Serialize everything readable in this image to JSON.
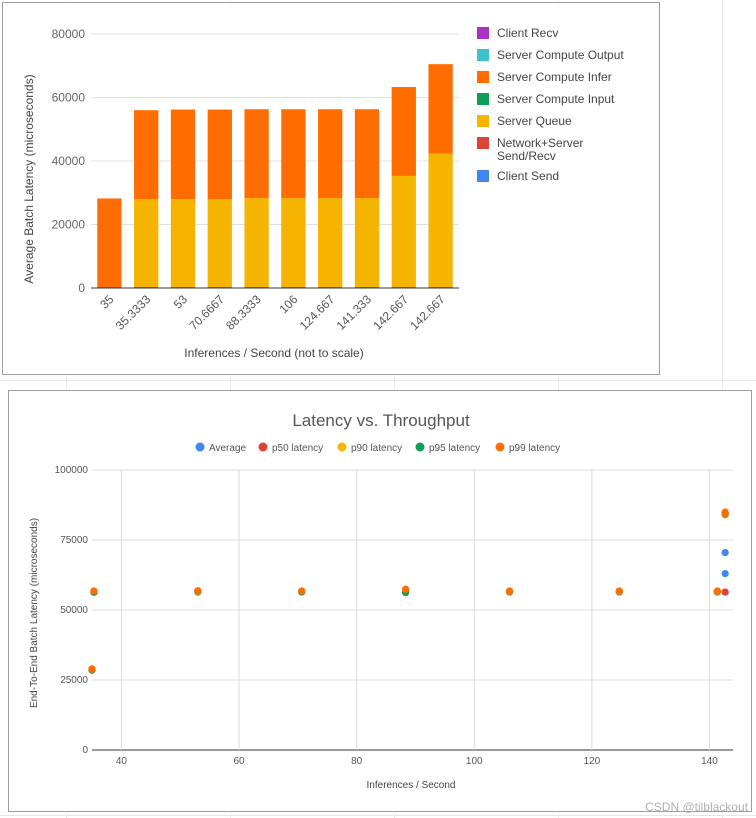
{
  "chart_data": [
    {
      "type": "bar",
      "stacked": true,
      "xlabel": "Inferences / Second (not to scale)",
      "ylabel": "Average Batch Latency (microseconds)",
      "ylim": [
        0,
        80000
      ],
      "yticks": [
        "0",
        "20000",
        "40000",
        "60000",
        "80000"
      ],
      "categories": [
        "35",
        "35.3333",
        "53",
        "70.6667",
        "88.3333",
        "106",
        "124.667",
        "141.333",
        "142.667",
        "142.667"
      ],
      "legend_position": "right",
      "legend": [
        {
          "name": "Client Recv",
          "color": "#ab30c4"
        },
        {
          "name": "Server Compute Output",
          "color": "#3ec1cf"
        },
        {
          "name": "Server Compute Infer",
          "color": "#ff6d01"
        },
        {
          "name": "Server Compute Input",
          "color": "#0f9d58"
        },
        {
          "name": "Server Queue",
          "color": "#f4b400"
        },
        {
          "name": "Network+Server\nSend/Recv",
          "color": "#db4437"
        },
        {
          "name": "Client Send",
          "color": "#4285f4"
        }
      ],
      "series": [
        {
          "name": "Client Send",
          "color": "#4285f4",
          "values": [
            0,
            0,
            0,
            0,
            0,
            0,
            0,
            0,
            0,
            0
          ]
        },
        {
          "name": "Network+Server Send/Recv",
          "color": "#db4437",
          "values": [
            300,
            300,
            300,
            300,
            300,
            300,
            300,
            300,
            300,
            300
          ]
        },
        {
          "name": "Server Queue",
          "color": "#f4b400",
          "values": [
            0,
            27700,
            27700,
            27700,
            28000,
            28000,
            28000,
            28000,
            35000,
            42000
          ]
        },
        {
          "name": "Server Compute Input",
          "color": "#0f9d58",
          "values": [
            0,
            0,
            0,
            0,
            0,
            0,
            0,
            0,
            0,
            0
          ]
        },
        {
          "name": "Server Compute Infer",
          "color": "#ff6d01",
          "values": [
            27900,
            28000,
            28200,
            28200,
            28000,
            28000,
            28000,
            28000,
            28000,
            28200
          ]
        },
        {
          "name": "Server Compute Output",
          "color": "#3ec1cf",
          "values": [
            0,
            0,
            0,
            0,
            0,
            0,
            0,
            0,
            0,
            0
          ]
        },
        {
          "name": "Client Recv",
          "color": "#ab30c4",
          "values": [
            0,
            0,
            0,
            0,
            0,
            0,
            0,
            0,
            0,
            0
          ]
        }
      ]
    },
    {
      "type": "scatter",
      "title": "Latency vs. Throughput",
      "xlabel": "Inferences / Second",
      "ylabel": "End-To-End Batch Latency (microseconds)",
      "xlim": [
        35,
        144
      ],
      "ylim": [
        0,
        100000
      ],
      "xticks": [
        "40",
        "60",
        "80",
        "100",
        "120",
        "140"
      ],
      "yticks": [
        "0",
        "25000",
        "50000",
        "75000",
        "100000"
      ],
      "grid": true,
      "legend_position": "top",
      "series": [
        {
          "name": "Average",
          "color": "#4285f4",
          "points": [
            [
              35,
              28500
            ],
            [
              35.3333,
              56300
            ],
            [
              53,
              56500
            ],
            [
              70.6667,
              56400
            ],
            [
              88.3333,
              56600
            ],
            [
              106,
              56500
            ],
            [
              124.667,
              56500
            ],
            [
              141.333,
              56500
            ],
            [
              142.667,
              63000
            ],
            [
              142.667,
              70500
            ]
          ]
        },
        {
          "name": "p50 latency",
          "color": "#db4437",
          "points": [
            [
              35,
              28500
            ],
            [
              35.3333,
              56300
            ],
            [
              53,
              56400
            ],
            [
              70.6667,
              56400
            ],
            [
              88.3333,
              56500
            ],
            [
              106,
              56400
            ],
            [
              124.667,
              56400
            ],
            [
              141.333,
              56400
            ],
            [
              142.667,
              56400
            ],
            [
              142.667,
              56400
            ]
          ]
        },
        {
          "name": "p90 latency",
          "color": "#f4b400",
          "points": [
            [
              35,
              28700
            ],
            [
              35.3333,
              56500
            ],
            [
              53,
              56600
            ],
            [
              70.6667,
              56500
            ],
            [
              88.3333,
              57000
            ],
            [
              106,
              56600
            ],
            [
              124.667,
              56600
            ],
            [
              141.333,
              56600
            ],
            [
              142.667,
              84000
            ],
            [
              142.667,
              84500
            ]
          ]
        },
        {
          "name": "p95 latency",
          "color": "#0f9d58",
          "points": [
            [
              35,
              28800
            ],
            [
              35.3333,
              56600
            ],
            [
              53,
              56700
            ],
            [
              70.6667,
              56600
            ],
            [
              88.3333,
              56200
            ],
            [
              106,
              56700
            ],
            [
              124.667,
              56700
            ],
            [
              141.333,
              56700
            ],
            [
              142.667,
              84200
            ],
            [
              142.667,
              84800
            ]
          ]
        },
        {
          "name": "p99 latency",
          "color": "#ff6d01",
          "points": [
            [
              35,
              29000
            ],
            [
              35.3333,
              56800
            ],
            [
              53,
              56900
            ],
            [
              70.6667,
              56800
            ],
            [
              88.3333,
              57400
            ],
            [
              106,
              56800
            ],
            [
              124.667,
              56800
            ],
            [
              141.333,
              56800
            ],
            [
              142.667,
              84400
            ],
            [
              142.667,
              85000
            ]
          ]
        }
      ]
    }
  ],
  "watermark": "CSDN @tilblackout"
}
